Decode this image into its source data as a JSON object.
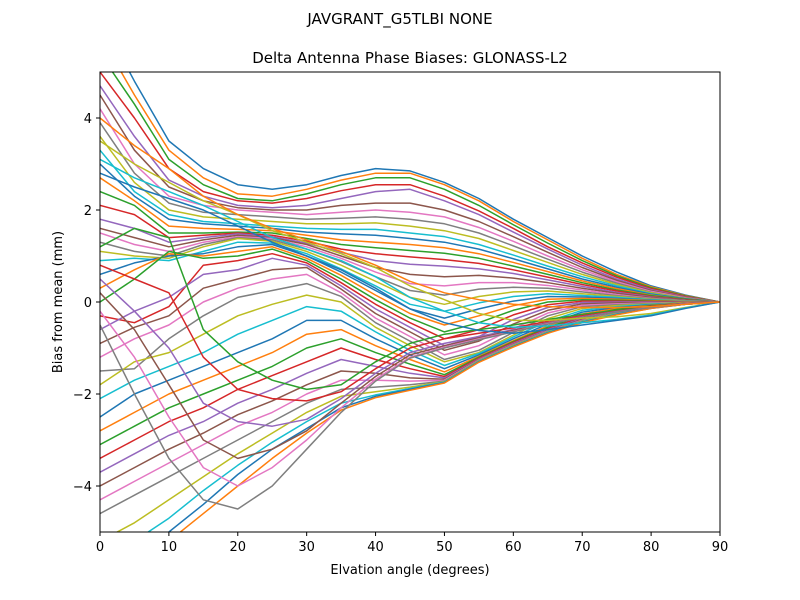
{
  "figure": {
    "suptitle": "JAVGRANT_G5TLBI NONE"
  },
  "chart_data": {
    "type": "line",
    "title": "Delta Antenna Phase Biases: GLONASS-L2",
    "xlabel": "Elvation angle (degrees)",
    "ylabel": "Bias from mean (mm)",
    "xlim": [
      0,
      90
    ],
    "ylim": [
      -5,
      5
    ],
    "xticks": [
      0,
      10,
      20,
      30,
      40,
      50,
      60,
      70,
      80,
      90
    ],
    "yticks": [
      -4,
      -2,
      0,
      2,
      4
    ],
    "xtick_labels": [
      "0",
      "10",
      "20",
      "30",
      "40",
      "50",
      "60",
      "70",
      "80",
      "90"
    ],
    "ytick_labels": [
      "−4",
      "−2",
      "0",
      "2",
      "4"
    ],
    "grid": false,
    "legend": "none",
    "x": [
      0,
      5,
      10,
      15,
      20,
      25,
      30,
      35,
      40,
      45,
      50,
      55,
      60,
      65,
      70,
      75,
      80,
      85,
      90
    ],
    "color_cycle": [
      "#1f77b4",
      "#ff7f0e",
      "#2ca02c",
      "#d62728",
      "#9467bd",
      "#8c564b",
      "#e377c2",
      "#7f7f7f",
      "#bcbd22",
      "#17becf"
    ],
    "series": [
      {
        "values": [
          6.2,
          4.8,
          3.5,
          2.9,
          2.55,
          2.45,
          2.55,
          2.75,
          2.9,
          2.85,
          2.6,
          2.25,
          1.8,
          1.4,
          1.0,
          0.65,
          0.35,
          0.15,
          0
        ]
      },
      {
        "values": [
          5.8,
          4.5,
          3.3,
          2.7,
          2.35,
          2.3,
          2.45,
          2.65,
          2.8,
          2.8,
          2.55,
          2.2,
          1.75,
          1.35,
          0.95,
          0.6,
          0.33,
          0.14,
          0
        ]
      },
      {
        "values": [
          5.4,
          4.3,
          3.1,
          2.55,
          2.25,
          2.2,
          2.35,
          2.55,
          2.7,
          2.7,
          2.45,
          2.1,
          1.68,
          1.28,
          0.9,
          0.57,
          0.31,
          0.13,
          0
        ]
      },
      {
        "values": [
          5.0,
          4.0,
          2.9,
          2.4,
          2.2,
          2.15,
          2.25,
          2.42,
          2.55,
          2.55,
          2.3,
          1.98,
          1.6,
          1.2,
          0.85,
          0.54,
          0.29,
          0.12,
          0
        ]
      },
      {
        "values": [
          4.7,
          3.6,
          2.65,
          2.3,
          2.1,
          2.05,
          2.1,
          2.25,
          2.4,
          2.45,
          2.2,
          1.9,
          1.52,
          1.15,
          0.8,
          0.5,
          0.27,
          0.11,
          0
        ]
      },
      {
        "values": [
          4.5,
          3.3,
          2.5,
          2.2,
          2.05,
          2.0,
          2.0,
          2.1,
          2.15,
          2.15,
          2.0,
          1.75,
          1.42,
          1.08,
          0.75,
          0.47,
          0.25,
          0.1,
          0
        ]
      },
      {
        "values": [
          4.2,
          3.0,
          2.3,
          2.1,
          2.0,
          1.95,
          1.9,
          1.95,
          2.0,
          1.95,
          1.85,
          1.62,
          1.32,
          1.0,
          0.7,
          0.44,
          0.23,
          0.09,
          0
        ]
      },
      {
        "values": [
          3.9,
          2.8,
          2.15,
          1.95,
          1.9,
          1.85,
          1.8,
          1.82,
          1.85,
          1.8,
          1.7,
          1.5,
          1.22,
          0.93,
          0.65,
          0.41,
          0.21,
          0.08,
          0
        ]
      },
      {
        "values": [
          3.6,
          2.6,
          2.0,
          1.85,
          1.8,
          1.75,
          1.7,
          1.7,
          1.72,
          1.65,
          1.55,
          1.38,
          1.12,
          0.86,
          0.6,
          0.38,
          0.2,
          0.08,
          0
        ]
      },
      {
        "values": [
          3.3,
          2.4,
          1.9,
          1.75,
          1.7,
          1.65,
          1.6,
          1.58,
          1.58,
          1.5,
          1.42,
          1.25,
          1.02,
          0.78,
          0.55,
          0.35,
          0.18,
          0.07,
          0
        ]
      },
      {
        "values": [
          3.0,
          2.3,
          1.8,
          1.7,
          1.65,
          1.6,
          1.52,
          1.48,
          1.45,
          1.38,
          1.3,
          1.15,
          0.94,
          0.72,
          0.5,
          0.32,
          0.17,
          0.07,
          0
        ]
      },
      {
        "values": [
          2.7,
          2.2,
          1.65,
          1.6,
          1.58,
          1.55,
          1.45,
          1.35,
          1.3,
          1.25,
          1.18,
          1.05,
          0.86,
          0.66,
          0.46,
          0.29,
          0.15,
          0.06,
          0
        ]
      },
      {
        "values": [
          2.4,
          2.1,
          1.5,
          1.5,
          1.52,
          1.5,
          1.38,
          1.25,
          1.18,
          1.12,
          1.06,
          0.95,
          0.78,
          0.6,
          0.42,
          0.26,
          0.14,
          0.06,
          0
        ]
      },
      {
        "values": [
          2.1,
          1.9,
          1.4,
          1.45,
          1.5,
          1.45,
          1.32,
          1.15,
          1.05,
          0.98,
          0.92,
          0.84,
          0.7,
          0.54,
          0.38,
          0.24,
          0.12,
          0.05,
          0
        ]
      },
      {
        "values": [
          1.8,
          1.6,
          1.3,
          1.4,
          1.48,
          1.42,
          1.28,
          1.08,
          0.9,
          0.82,
          0.78,
          0.72,
          0.62,
          0.48,
          0.34,
          0.21,
          0.11,
          0.04,
          0
        ]
      },
      {
        "values": [
          1.6,
          1.4,
          1.2,
          1.35,
          1.45,
          1.4,
          1.25,
          1.0,
          0.75,
          0.6,
          0.55,
          0.58,
          0.52,
          0.42,
          0.3,
          0.19,
          0.1,
          0.04,
          0
        ]
      },
      {
        "values": [
          1.5,
          1.25,
          1.1,
          1.3,
          1.42,
          1.38,
          1.2,
          0.95,
          0.65,
          0.4,
          0.35,
          0.42,
          0.42,
          0.36,
          0.26,
          0.16,
          0.08,
          0.03,
          0
        ]
      },
      {
        "values": [
          1.3,
          1.1,
          1.0,
          1.25,
          1.4,
          1.35,
          1.15,
          0.88,
          0.55,
          0.25,
          0.15,
          0.28,
          0.32,
          0.3,
          0.22,
          0.14,
          0.07,
          0.03,
          0
        ]
      },
      {
        "values": [
          1.1,
          1.0,
          0.95,
          1.2,
          1.38,
          1.32,
          1.1,
          0.8,
          0.45,
          0.1,
          -0.05,
          0.12,
          0.22,
          0.24,
          0.18,
          0.12,
          0.06,
          0.02,
          0
        ]
      },
      {
        "values": [
          0.9,
          0.95,
          0.9,
          1.1,
          1.3,
          1.28,
          1.05,
          0.72,
          0.35,
          -0.05,
          -0.2,
          -0.02,
          0.12,
          0.18,
          0.14,
          0.1,
          0.05,
          0.02,
          0
        ]
      },
      {
        "values": [
          0.6,
          0.85,
          1.0,
          1.05,
          1.2,
          1.25,
          1.0,
          0.65,
          0.25,
          -0.15,
          -0.35,
          -0.15,
          0.02,
          0.12,
          0.11,
          0.08,
          0.04,
          0.01,
          0
        ]
      },
      {
        "values": [
          0.3,
          0.7,
          1.05,
          1.0,
          1.1,
          1.2,
          0.95,
          0.58,
          0.15,
          -0.25,
          -0.5,
          -0.3,
          -0.08,
          0.06,
          0.08,
          0.06,
          0.03,
          0.01,
          0
        ]
      },
      {
        "values": [
          0.0,
          0.5,
          1.1,
          0.95,
          1.0,
          1.15,
          0.9,
          0.5,
          0.05,
          -0.35,
          -0.65,
          -0.45,
          -0.18,
          0.0,
          0.05,
          0.04,
          0.02,
          0.0,
          0
        ]
      },
      {
        "values": [
          -0.3,
          -0.45,
          -0.1,
          0.8,
          0.9,
          1.05,
          0.85,
          0.42,
          -0.05,
          -0.45,
          -0.8,
          -0.6,
          -0.28,
          -0.06,
          0.02,
          0.02,
          0.01,
          0.0,
          0
        ]
      },
      {
        "values": [
          -0.6,
          -0.2,
          0.1,
          0.6,
          0.7,
          0.95,
          0.8,
          0.35,
          -0.15,
          -0.55,
          -0.95,
          -0.75,
          -0.38,
          -0.12,
          -0.01,
          0.0,
          0.0,
          0.0,
          0
        ]
      },
      {
        "values": [
          -0.9,
          -0.55,
          -0.3,
          0.3,
          0.5,
          0.7,
          0.75,
          0.28,
          -0.25,
          -0.65,
          -1.05,
          -0.85,
          -0.48,
          -0.18,
          -0.04,
          -0.02,
          -0.01,
          0.0,
          0
        ]
      },
      {
        "values": [
          -1.2,
          -0.8,
          -0.5,
          0.0,
          0.3,
          0.5,
          0.6,
          0.2,
          -0.35,
          -0.75,
          -1.15,
          -0.95,
          -0.58,
          -0.24,
          -0.07,
          -0.04,
          -0.02,
          -0.01,
          0
        ]
      },
      {
        "values": [
          -1.5,
          -1.45,
          -0.8,
          -0.3,
          0.1,
          0.25,
          0.4,
          0.12,
          -0.45,
          -0.85,
          -1.25,
          -1.05,
          -0.66,
          -0.3,
          -0.1,
          -0.06,
          -0.03,
          -0.01,
          0
        ]
      },
      {
        "values": [
          -1.8,
          -1.3,
          -1.1,
          -0.7,
          -0.3,
          -0.05,
          0.15,
          0.0,
          -0.55,
          -0.95,
          -1.3,
          -1.1,
          -0.72,
          -0.36,
          -0.14,
          -0.08,
          -0.04,
          -0.01,
          0
        ]
      },
      {
        "values": [
          -2.1,
          -1.7,
          -1.4,
          -1.1,
          -0.7,
          -0.4,
          -0.1,
          -0.2,
          -0.65,
          -1.05,
          -1.38,
          -1.12,
          -0.76,
          -0.42,
          -0.18,
          -0.1,
          -0.05,
          -0.02,
          0
        ]
      },
      {
        "values": [
          -2.5,
          -2.0,
          -1.7,
          -1.4,
          -1.1,
          -0.8,
          -0.4,
          -0.4,
          -0.8,
          -1.15,
          -1.45,
          -1.15,
          -0.8,
          -0.48,
          -0.22,
          -0.12,
          -0.06,
          -0.02,
          0
        ]
      },
      {
        "values": [
          -2.8,
          -2.4,
          -2.0,
          -1.7,
          -1.4,
          -1.1,
          -0.7,
          -0.6,
          -0.95,
          -1.25,
          -1.52,
          -1.18,
          -0.84,
          -0.52,
          -0.26,
          -0.14,
          -0.07,
          -0.02,
          0
        ]
      },
      {
        "values": [
          -3.1,
          -2.7,
          -2.3,
          -2.0,
          -1.7,
          -1.4,
          -1.0,
          -0.8,
          -1.1,
          -1.35,
          -1.58,
          -1.2,
          -0.86,
          -0.55,
          -0.3,
          -0.16,
          -0.08,
          -0.03,
          0
        ]
      },
      {
        "values": [
          -3.4,
          -3.0,
          -2.6,
          -2.3,
          -1.9,
          -1.6,
          -1.3,
          -1.0,
          -1.25,
          -1.45,
          -1.62,
          -1.22,
          -0.88,
          -0.58,
          -0.33,
          -0.18,
          -0.09,
          -0.03,
          0
        ]
      },
      {
        "values": [
          -3.7,
          -3.3,
          -2.9,
          -2.6,
          -2.2,
          -1.9,
          -1.55,
          -1.25,
          -1.4,
          -1.55,
          -1.65,
          -1.24,
          -0.9,
          -0.6,
          -0.36,
          -0.2,
          -0.1,
          -0.03,
          0
        ]
      },
      {
        "values": [
          -4.0,
          -3.6,
          -3.2,
          -2.85,
          -2.45,
          -2.15,
          -1.8,
          -1.5,
          -1.55,
          -1.65,
          -1.68,
          -1.25,
          -0.92,
          -0.62,
          -0.38,
          -0.22,
          -0.11,
          -0.04,
          0
        ]
      },
      {
        "values": [
          -4.3,
          -3.9,
          -3.5,
          -3.1,
          -2.7,
          -2.4,
          -2.0,
          -1.7,
          -1.7,
          -1.72,
          -1.7,
          -1.26,
          -0.93,
          -0.63,
          -0.4,
          -0.23,
          -0.12,
          -0.04,
          0
        ]
      },
      {
        "values": [
          -4.6,
          -4.2,
          -3.8,
          -3.4,
          -3.0,
          -2.6,
          -2.2,
          -1.9,
          -1.85,
          -1.8,
          -1.72,
          -1.27,
          -0.94,
          -0.64,
          -0.41,
          -0.24,
          -0.12,
          -0.04,
          0
        ]
      },
      {
        "values": [
          -5.2,
          -4.8,
          -4.3,
          -3.8,
          -3.3,
          -2.85,
          -2.4,
          -2.05,
          -1.95,
          -1.85,
          -1.73,
          -1.28,
          -0.95,
          -0.65,
          -0.42,
          -0.25,
          -0.13,
          -0.05,
          0
        ]
      },
      {
        "values": [
          -5.6,
          -5.2,
          -4.7,
          -4.1,
          -3.55,
          -3.05,
          -2.6,
          -2.2,
          -2.02,
          -1.88,
          -1.74,
          -1.29,
          -0.96,
          -0.66,
          -0.43,
          -0.26,
          -0.13,
          -0.05,
          0
        ]
      },
      {
        "values": [
          -6.0,
          -5.6,
          -5.0,
          -4.4,
          -3.75,
          -3.2,
          -2.75,
          -2.3,
          -2.05,
          -1.9,
          -1.75,
          -1.3,
          -0.97,
          -0.67,
          -0.44,
          -0.27,
          -0.14,
          -0.05,
          0
        ]
      },
      {
        "values": [
          -6.4,
          -5.9,
          -5.2,
          -4.6,
          -4.0,
          -3.4,
          -2.85,
          -2.35,
          -2.08,
          -1.92,
          -1.76,
          -1.31,
          -0.98,
          -0.68,
          -0.45,
          -0.28,
          -0.14,
          -0.05,
          0
        ]
      },
      {
        "values": [
          1.2,
          1.6,
          1.4,
          -0.6,
          -1.3,
          -1.7,
          -1.9,
          -1.8,
          -1.3,
          -0.9,
          -0.7,
          -0.6,
          -0.5,
          -0.38,
          -0.27,
          -0.18,
          -0.1,
          -0.04,
          0
        ]
      },
      {
        "values": [
          0.8,
          0.5,
          0.2,
          -1.2,
          -1.9,
          -2.1,
          -2.15,
          -1.95,
          -1.45,
          -1.0,
          -0.8,
          -0.68,
          -0.56,
          -0.42,
          -0.3,
          -0.2,
          -0.11,
          -0.04,
          0
        ]
      },
      {
        "values": [
          0.5,
          -0.2,
          -1.0,
          -2.2,
          -2.6,
          -2.7,
          -2.55,
          -2.1,
          -1.55,
          -1.1,
          -0.9,
          -0.75,
          -0.6,
          -0.45,
          -0.32,
          -0.21,
          -0.11,
          -0.04,
          0
        ]
      },
      {
        "values": [
          0.2,
          -0.6,
          -1.8,
          -3.0,
          -3.4,
          -3.2,
          -2.8,
          -2.2,
          -1.62,
          -1.15,
          -0.95,
          -0.78,
          -0.62,
          -0.46,
          -0.33,
          -0.22,
          -0.12,
          -0.05,
          0
        ]
      },
      {
        "values": [
          -0.2,
          -1.2,
          -2.5,
          -3.6,
          -4.0,
          -3.6,
          -3.0,
          -2.3,
          -1.68,
          -1.2,
          -0.98,
          -0.8,
          -0.64,
          -0.47,
          -0.34,
          -0.22,
          -0.12,
          -0.05,
          0
        ]
      },
      {
        "values": [
          -0.5,
          -2.0,
          -3.4,
          -4.3,
          -4.5,
          -4.0,
          -3.2,
          -2.4,
          -1.72,
          -1.22,
          -1.0,
          -0.82,
          -0.65,
          -0.48,
          -0.34,
          -0.22,
          -0.12,
          -0.05,
          0
        ]
      },
      {
        "values": [
          3.5,
          3.0,
          2.6,
          2.2,
          1.9,
          1.55,
          1.3,
          1.05,
          0.75,
          0.35,
          0.05,
          -0.25,
          -0.4,
          -0.4,
          -0.35,
          -0.32,
          -0.25,
          -0.12,
          0
        ]
      },
      {
        "values": [
          3.1,
          2.7,
          2.4,
          2.1,
          1.75,
          1.4,
          1.15,
          0.9,
          0.55,
          0.1,
          -0.2,
          -0.45,
          -0.55,
          -0.52,
          -0.45,
          -0.38,
          -0.28,
          -0.13,
          0
        ]
      },
      {
        "values": [
          2.8,
          2.5,
          2.25,
          2.0,
          1.65,
          1.3,
          1.0,
          0.7,
          0.3,
          -0.15,
          -0.45,
          -0.62,
          -0.68,
          -0.6,
          -0.5,
          -0.4,
          -0.3,
          -0.14,
          0
        ]
      },
      {
        "values": [
          4.0,
          3.4,
          2.9,
          2.3,
          1.9,
          1.6,
          1.35,
          1.1,
          0.8,
          0.45,
          0.2,
          0.05,
          -0.05,
          -0.1,
          -0.12,
          -0.12,
          -0.1,
          -0.05,
          0
        ]
      }
    ]
  }
}
